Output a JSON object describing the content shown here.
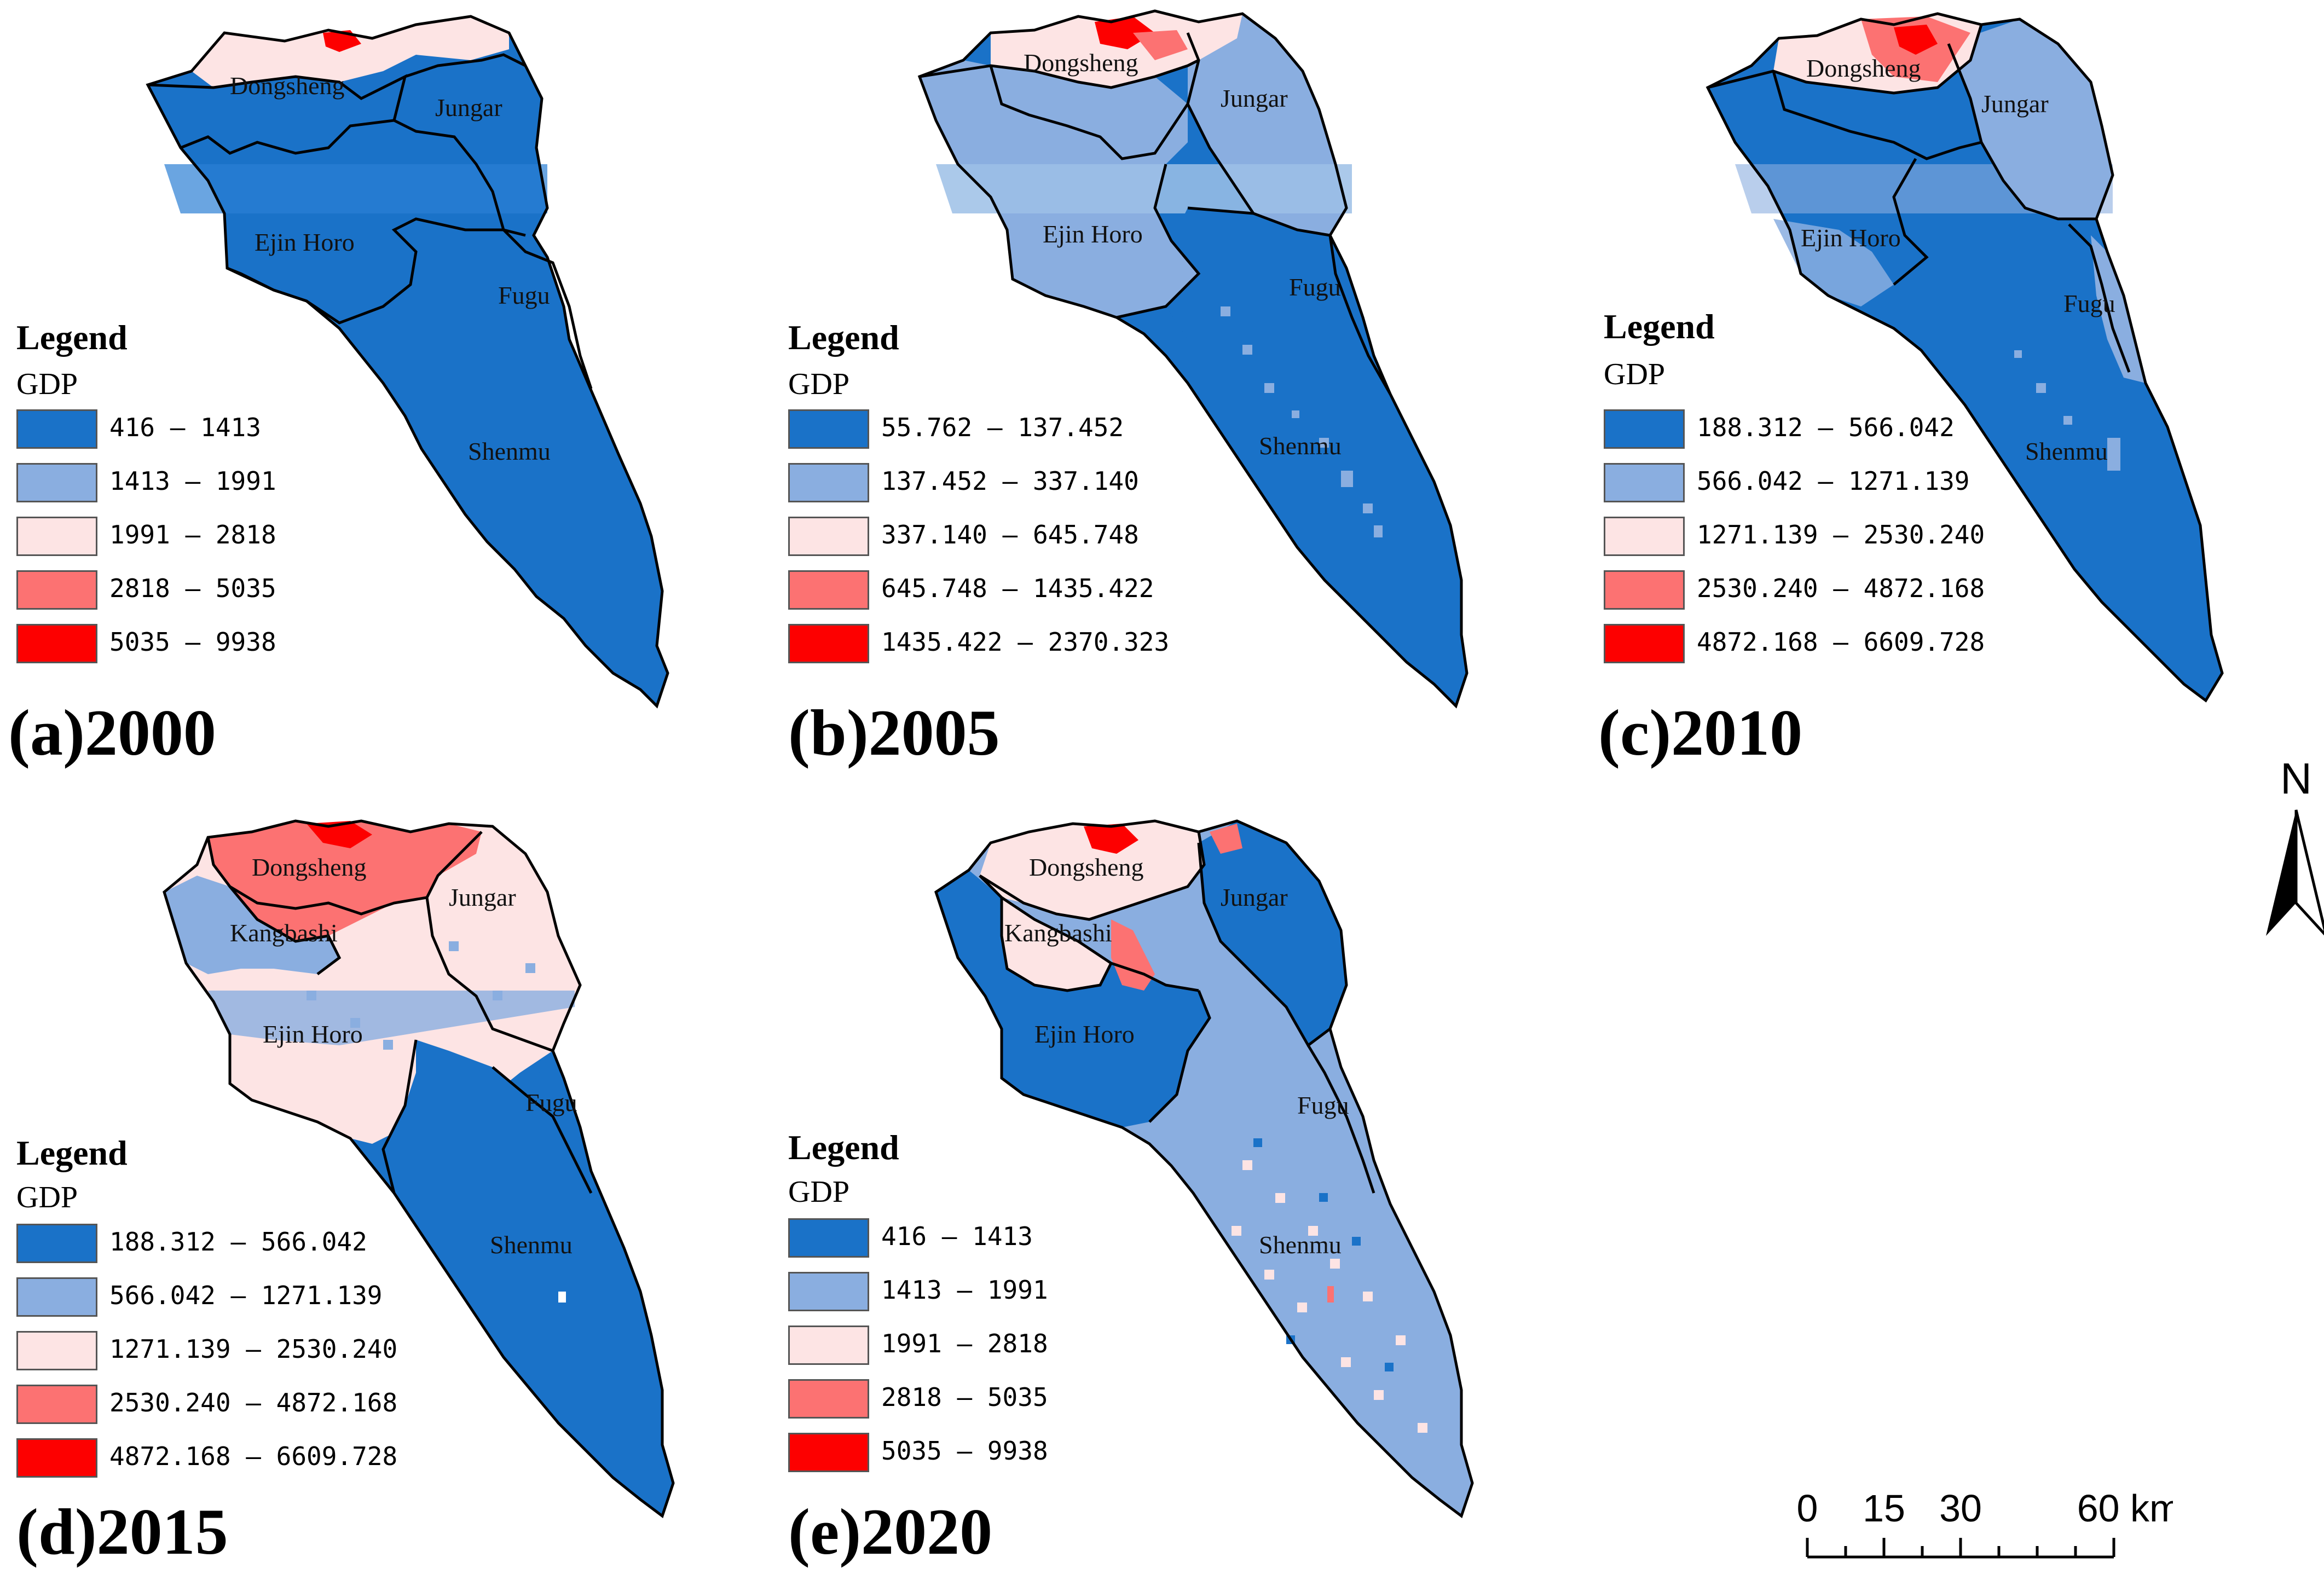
{
  "colors": {
    "class1": "#1a72c8",
    "class2": "#8aaee0",
    "class3": "#fde4e4",
    "class4": "#fc7272",
    "class5": "#fd0000",
    "boundary": "#000000"
  },
  "panels": [
    {
      "label": "(a)2000",
      "legend_title": "Legend",
      "legend_sub": "GDP",
      "classes": [
        "416 — 1413",
        "1413 — 1991",
        "1991 — 2818",
        "2818 — 5035",
        "5035 — 9938"
      ],
      "counties": [
        "Dongsheng",
        "Jungar",
        "Ejin Horo",
        "Fugu",
        "Shenmu"
      ]
    },
    {
      "label": "(b)2005",
      "legend_title": "Legend",
      "legend_sub": "GDP",
      "classes": [
        "55.762 — 137.452",
        "137.452 — 337.140",
        "337.140 — 645.748",
        "645.748 — 1435.422",
        "1435.422 — 2370.323"
      ],
      "counties": [
        "Dongsheng",
        "Jungar",
        "Ejin Horo",
        "Fugu",
        "Shenmu"
      ]
    },
    {
      "label": "(c)2010",
      "legend_title": "Legend",
      "legend_sub": "GDP",
      "classes": [
        "188.312 — 566.042",
        "566.042 — 1271.139",
        "1271.139 — 2530.240",
        "2530.240 — 4872.168",
        "4872.168 — 6609.728"
      ],
      "counties": [
        "Dongsheng",
        "Jungar",
        "Ejin Horo",
        "Fugu",
        "Shenmu"
      ]
    },
    {
      "label": "(d)2015",
      "legend_title": "Legend",
      "legend_sub": "GDP",
      "classes": [
        "188.312 — 566.042",
        "566.042 — 1271.139",
        "1271.139 — 2530.240",
        "2530.240 — 4872.168",
        "4872.168 — 6609.728"
      ],
      "counties": [
        "Dongsheng",
        "Kangbashi",
        "Jungar",
        "Ejin Horo",
        "Fugu",
        "Shenmu"
      ]
    },
    {
      "label": "(e)2020",
      "legend_title": "Legend",
      "legend_sub": "GDP",
      "classes": [
        "416 — 1413",
        "1413 — 1991",
        "1991 — 2818",
        "2818 — 5035",
        "5035 — 9938"
      ],
      "counties": [
        "Dongsheng",
        "Kangbashi",
        "Jungar",
        "Ejin Horo",
        "Fugu",
        "Shenmu"
      ]
    }
  ],
  "north_arrow": {
    "label": "N"
  },
  "scale_bar": {
    "ticks": [
      "0",
      "15",
      "30",
      "60 km"
    ]
  }
}
